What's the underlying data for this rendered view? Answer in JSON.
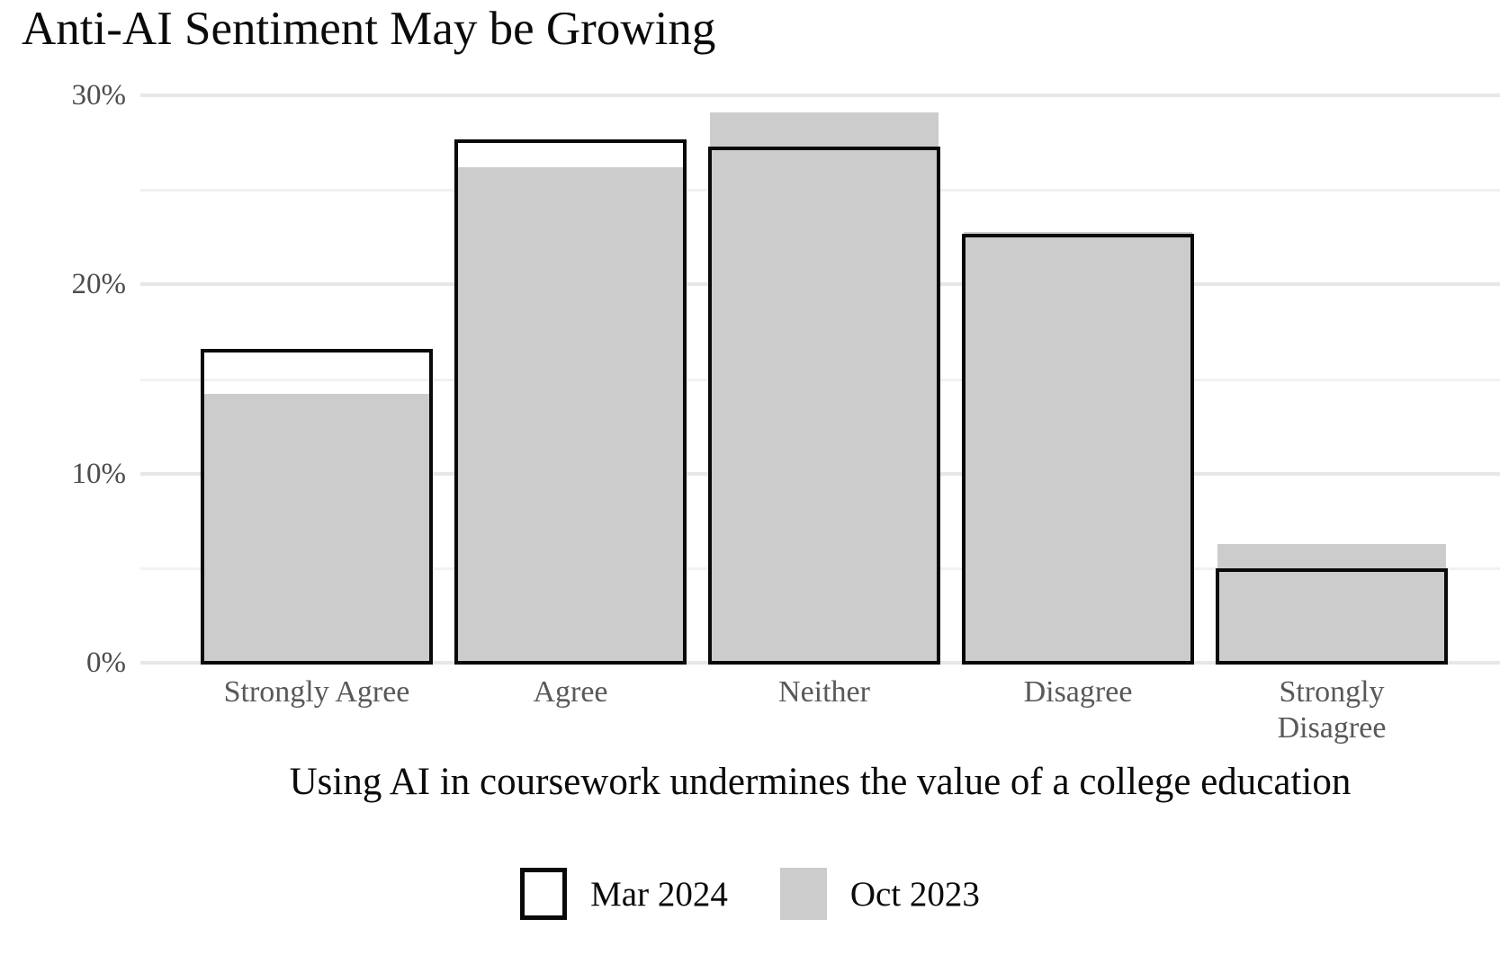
{
  "title": "Anti-AI Sentiment May be Growing",
  "chart_data": {
    "type": "bar",
    "title": "Anti-AI Sentiment May be Growing",
    "xlabel": "Using AI in coursework undermines the value of a college education",
    "ylabel": "",
    "categories": [
      "Strongly Agree",
      "Agree",
      "Neither",
      "Disagree",
      "Strongly Disagree"
    ],
    "series": [
      {
        "name": "Mar 2024",
        "style": "outline",
        "values": [
          16.5,
          27.6,
          27.2,
          22.6,
          4.9
        ]
      },
      {
        "name": "Oct 2023",
        "style": "fill",
        "values": [
          14.2,
          26.2,
          29.1,
          22.8,
          6.3
        ]
      }
    ],
    "ylim": [
      0,
      30
    ],
    "yticks": [
      0,
      10,
      20,
      30
    ],
    "ytick_labels": [
      "0%",
      "10%",
      "20%",
      "30%"
    ],
    "minor_gridlines": [
      5,
      15,
      25
    ],
    "grid": true,
    "legend_position": "bottom"
  },
  "legend": {
    "items": [
      {
        "label": "Mar 2024",
        "swatch": "outline"
      },
      {
        "label": "Oct 2023",
        "swatch": "fill"
      }
    ]
  },
  "colors": {
    "bar_fill": "#cccccc",
    "bar_outline": "#0a0a0a",
    "axis_text": "#4d4d4d",
    "category_text": "#595959",
    "gridline_major": "#e7e7e7",
    "gridline_minor": "#f1f1f1",
    "title_text": "#0b0b0b",
    "background": "#ffffff"
  }
}
